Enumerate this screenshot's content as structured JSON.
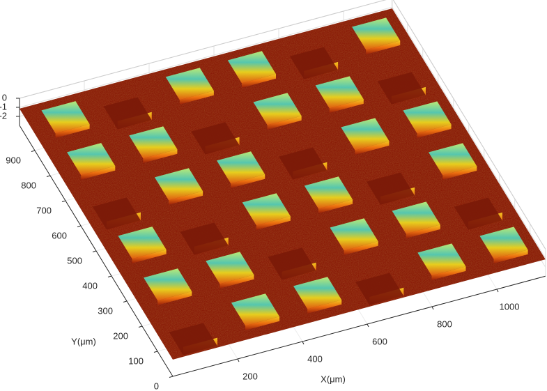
{
  "chart_data": {
    "type": "surface",
    "xlabel": "X(μm)",
    "ylabel": "Y(μm)",
    "xlim": [
      0,
      1150
    ],
    "ylim": [
      0,
      1000
    ],
    "zlim": [
      -3,
      0
    ],
    "xticks": [
      200,
      400,
      600,
      800,
      1000
    ],
    "yticks": [
      0,
      100,
      200,
      300,
      400,
      500,
      600,
      700,
      800,
      900
    ],
    "zticks": [
      0,
      -1,
      -2
    ],
    "grid": true
  }
}
